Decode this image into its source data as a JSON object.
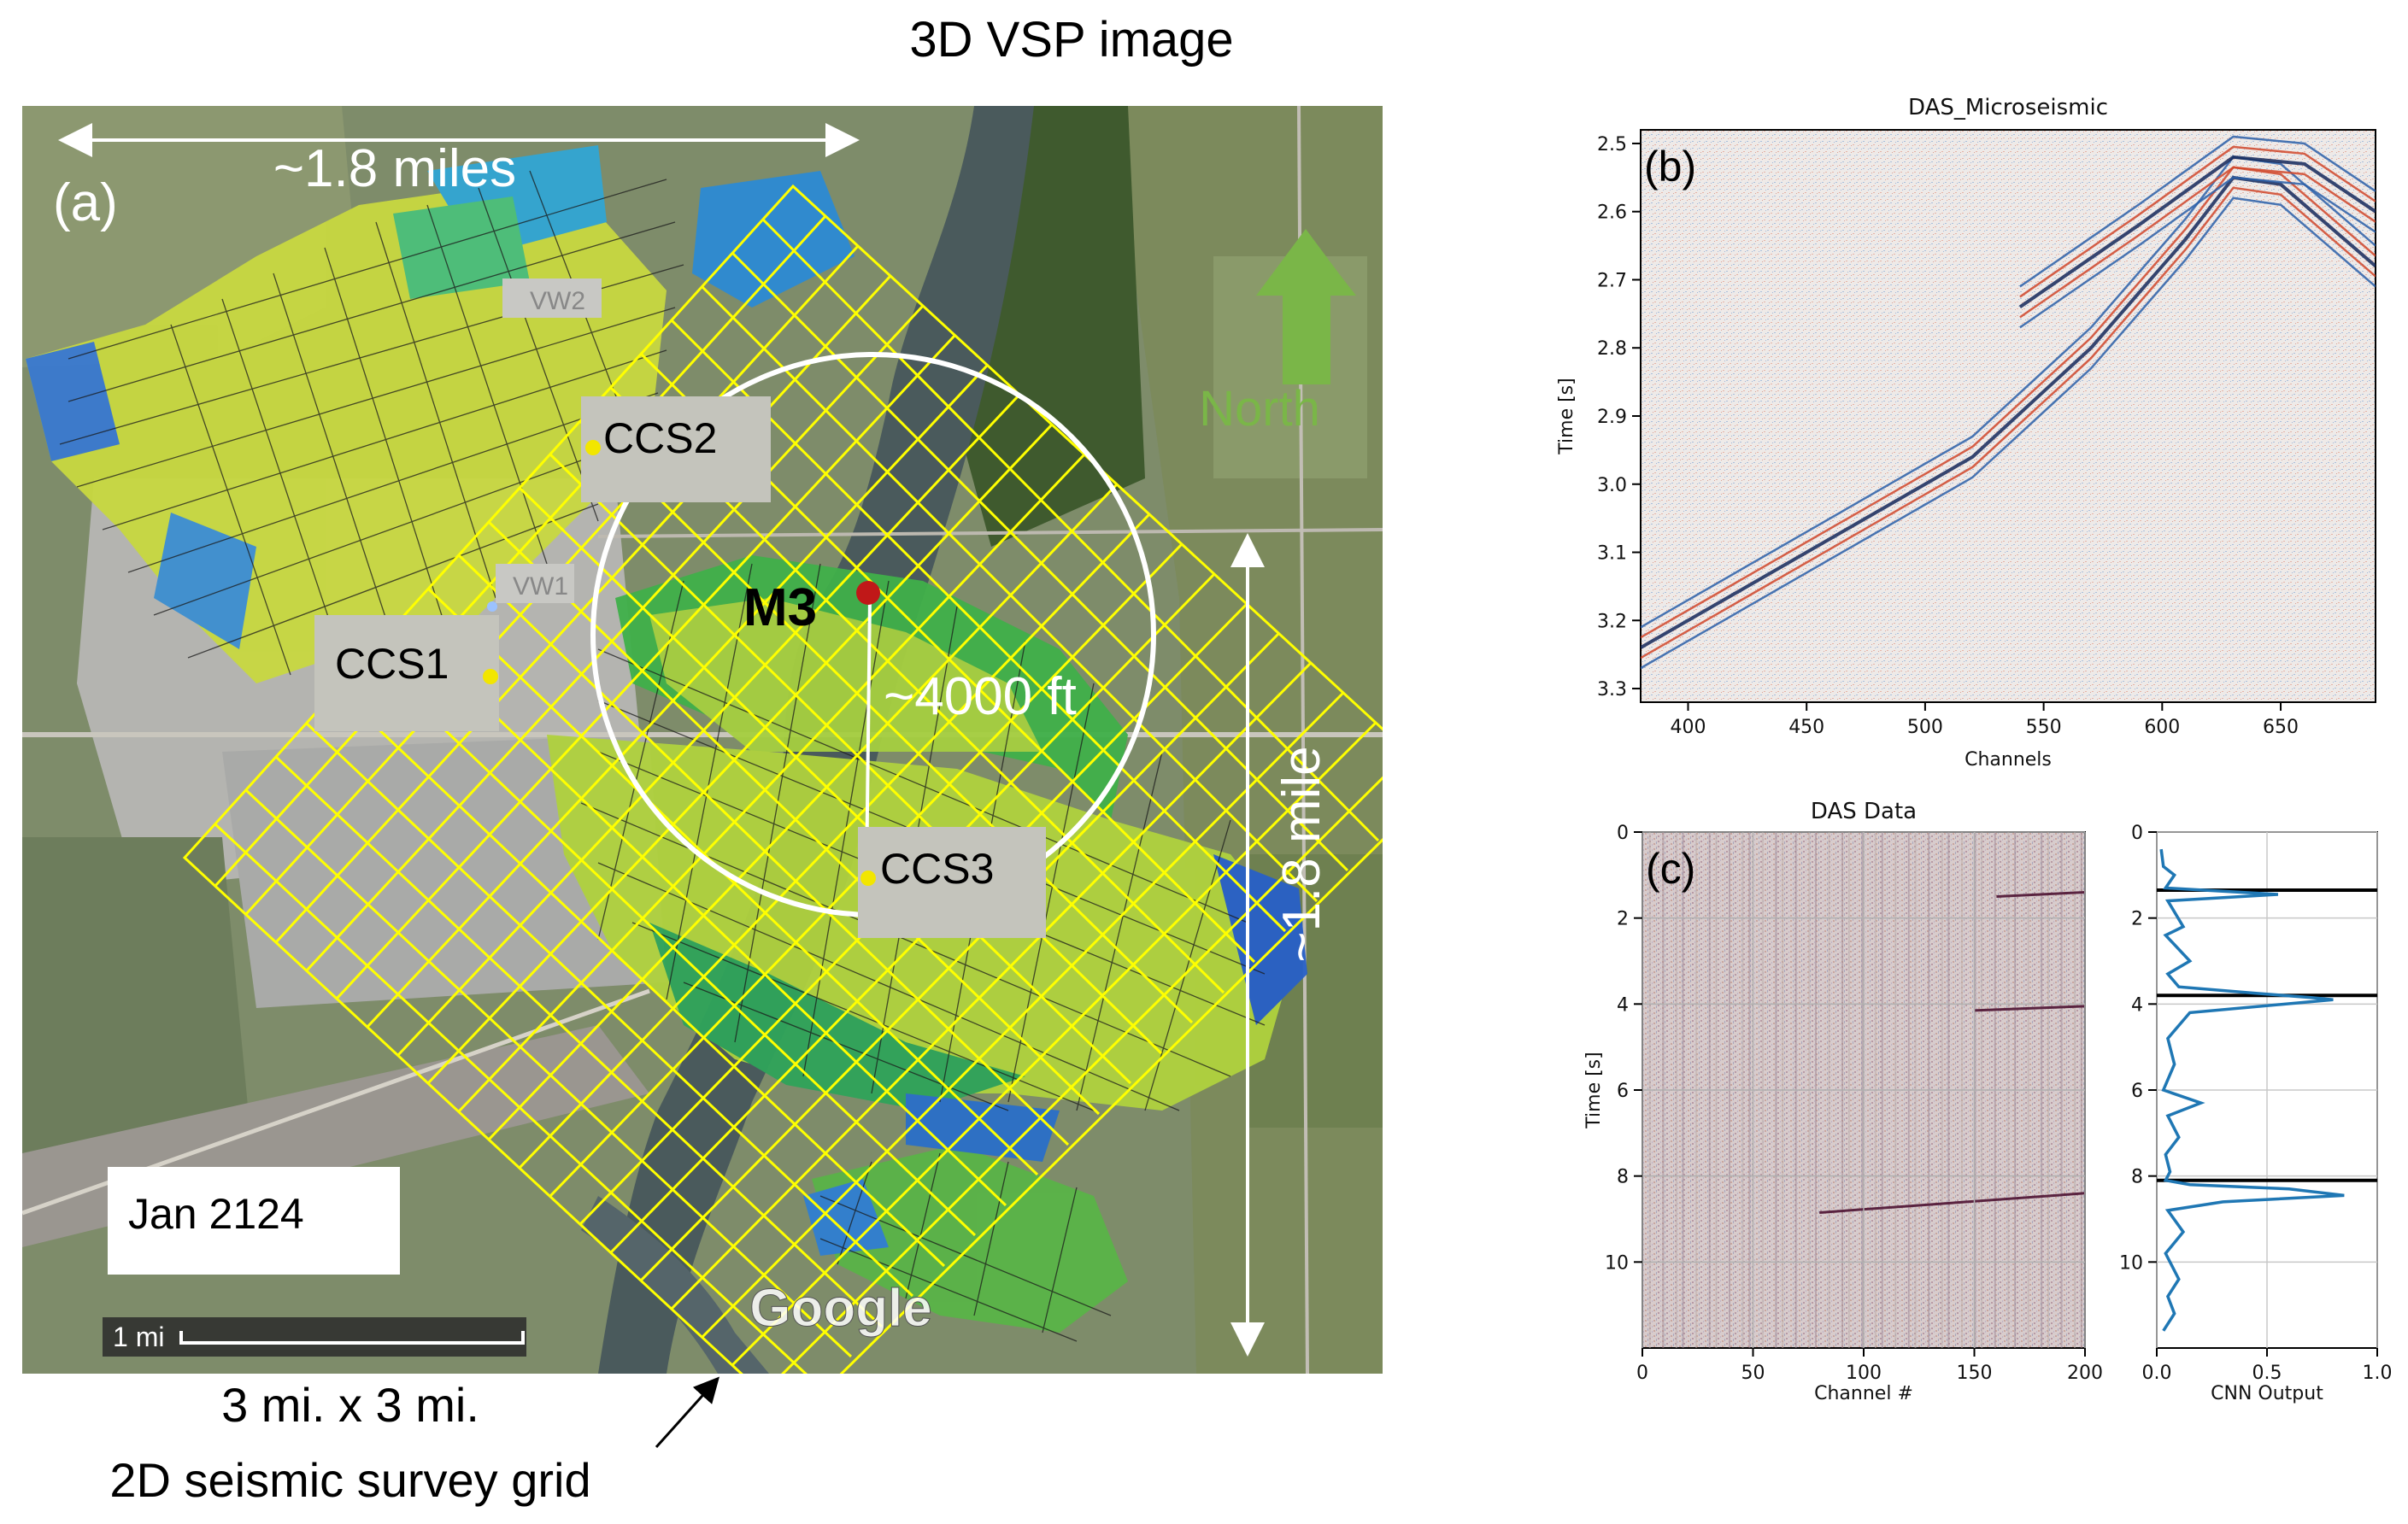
{
  "figure": {
    "top_label": "3D VSP image",
    "bottom_label_line1": "3 mi. x 3 mi.",
    "bottom_label_line2": "2D seismic survey grid"
  },
  "map_panel": {
    "panel_label": "(a)",
    "width_label": "~1.8 miles",
    "height_label": "~1.8 mile",
    "distance_label": "~4000 ft",
    "north_label": "North",
    "date_label": "Jan 2124",
    "scale_label": "1 mi",
    "google_label": "Google",
    "wells": [
      {
        "label": "CCS2"
      },
      {
        "label": "CCS1"
      },
      {
        "label": "CCS3"
      },
      {
        "label": "VW2"
      },
      {
        "label": "VW1"
      },
      {
        "label": "M3"
      }
    ],
    "colors": {
      "grid": "#ffff00",
      "circle": "#ffffff",
      "well": "#f2e600",
      "m3": "#c01818",
      "north": "#7ab648",
      "arrow": "#e0141c"
    }
  },
  "chart_data": [
    {
      "type": "heatmap",
      "panel_label": "(b)",
      "title": "DAS_Microseismic",
      "xlabel": "Channels",
      "ylabel": "Time [s]",
      "xlim": [
        380,
        690
      ],
      "ylim": [
        3.32,
        2.48
      ],
      "xticks": [
        "400",
        "450",
        "500",
        "550",
        "600",
        "650"
      ],
      "yticks": [
        "2.5",
        "2.6",
        "2.7",
        "2.8",
        "2.9",
        "3.0",
        "3.1",
        "3.2",
        "3.3"
      ],
      "events": [
        {
          "x": [
            380,
            470,
            520,
            570,
            610,
            630,
            650,
            690
          ],
          "y": [
            3.24,
            3.06,
            2.96,
            2.8,
            2.64,
            2.55,
            2.56,
            2.68
          ]
        },
        {
          "x": [
            540,
            590,
            630,
            660,
            690
          ],
          "y": [
            2.74,
            2.62,
            2.52,
            2.53,
            2.6
          ]
        }
      ],
      "colors": {
        "positive": "#d0472a",
        "negative": "#2a5fa8",
        "background": "#efe9e6"
      }
    },
    {
      "type": "heatmap",
      "panel_label": "(c)",
      "title": "DAS Data",
      "xlabel": "Channel #",
      "ylabel": "Time [s]",
      "xlim": [
        0,
        200
      ],
      "ylim": [
        12,
        0
      ],
      "xticks": [
        "0",
        "50",
        "100",
        "150",
        "200"
      ],
      "yticks": [
        "0",
        "2",
        "4",
        "6",
        "8",
        "10"
      ],
      "events": [
        {
          "x": [
            160,
            200
          ],
          "y": [
            1.5,
            1.4
          ]
        },
        {
          "x": [
            150,
            200
          ],
          "y": [
            4.15,
            4.05
          ]
        },
        {
          "x": [
            80,
            200
          ],
          "y": [
            8.85,
            8.4
          ]
        }
      ]
    },
    {
      "type": "line",
      "title": "",
      "xlabel": "CNN Output",
      "ylabel": "",
      "xlim": [
        0,
        1.0
      ],
      "ylim": [
        12,
        0
      ],
      "xticks": [
        "0.0",
        "0.5",
        "1.0"
      ],
      "yticks": [
        "0",
        "2",
        "4",
        "6",
        "8",
        "10"
      ],
      "series": [
        {
          "x": [
            0.02,
            0.03,
            0.08,
            0.04,
            0.55,
            0.05,
            0.12,
            0.04,
            0.15,
            0.05,
            0.1,
            0.45,
            0.7,
            0.8,
            0.15,
            0.05,
            0.08,
            0.03,
            0.2,
            0.05,
            0.1,
            0.04,
            0.06,
            0.04,
            0.15,
            0.6,
            0.85,
            0.3,
            0.05,
            0.12,
            0.04,
            0.1,
            0.05,
            0.08,
            0.03
          ],
          "y": [
            0.4,
            0.8,
            1.0,
            1.3,
            1.45,
            1.6,
            2.2,
            2.4,
            3.0,
            3.3,
            3.6,
            3.75,
            3.85,
            3.9,
            4.2,
            4.8,
            5.4,
            6.0,
            6.3,
            6.6,
            7.1,
            7.5,
            7.9,
            8.1,
            8.2,
            8.3,
            8.45,
            8.6,
            8.8,
            9.3,
            9.8,
            10.4,
            10.8,
            11.2,
            11.6
          ]
        }
      ],
      "hlines": [
        1.35,
        3.8,
        8.1
      ],
      "colors": {
        "line": "#1f77b4",
        "hline": "#000000"
      }
    }
  ]
}
